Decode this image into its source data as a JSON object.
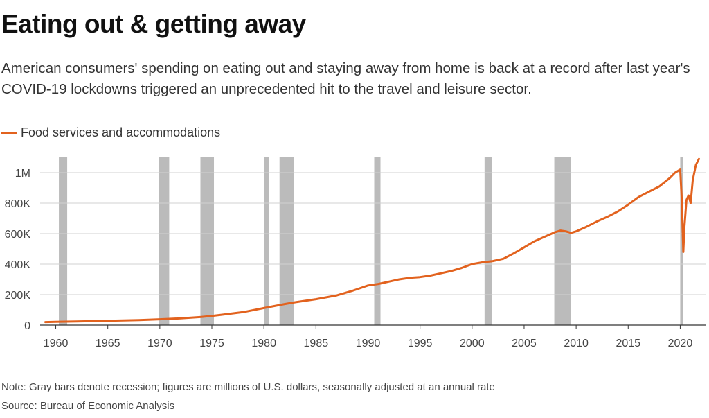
{
  "header": {
    "title": "Eating out & getting away",
    "subtitle": "American consumers' spending on eating out and staying away from home is back at a record after last year's COVID-19 lockdowns triggered an unprecedented hit to the travel and leisure sector."
  },
  "footer": {
    "note": "Note: Gray bars denote recession; figures are millions of U.S. dollars, seasonally adjusted at an annual rate",
    "source": "Source: Bureau of Economic Analysis"
  },
  "colors": {
    "line": "#e2621e",
    "recession": "#bbbbbb",
    "grid": "#d0d0d0"
  },
  "chart_data": {
    "type": "line",
    "title": "Eating out & getting away",
    "xlabel": "",
    "ylabel": "",
    "xlim": [
      1958.5,
      2022.5
    ],
    "ylim": [
      0,
      1100000
    ],
    "grid": true,
    "legend_position": "top-left",
    "x_ticks": [
      1960,
      1965,
      1970,
      1975,
      1980,
      1985,
      1990,
      1995,
      2000,
      2005,
      2010,
      2015,
      2020
    ],
    "x_tick_labels": [
      "1960",
      "1965",
      "1970",
      "1975",
      "1980",
      "1985",
      "1990",
      "1995",
      "2000",
      "2005",
      "2010",
      "2015",
      "2020"
    ],
    "y_ticks": [
      0,
      200000,
      400000,
      600000,
      800000,
      1000000
    ],
    "y_tick_labels": [
      "0",
      "200K",
      "400K",
      "600K",
      "800K",
      "1M"
    ],
    "recessions": [
      [
        1960.3,
        1961.1
      ],
      [
        1969.9,
        1970.9
      ],
      [
        1973.9,
        1975.2
      ],
      [
        1980.0,
        1980.5
      ],
      [
        1981.5,
        1982.9
      ],
      [
        1990.6,
        1991.2
      ],
      [
        2001.2,
        2001.9
      ],
      [
        2007.9,
        2009.5
      ],
      [
        2020.0,
        2020.3
      ]
    ],
    "series": [
      {
        "name": "Food services and accommodations",
        "x": [
          1959.0,
          1960.0,
          1962.0,
          1965.0,
          1968.0,
          1970.0,
          1972.0,
          1974.0,
          1975.0,
          1976.0,
          1978.0,
          1980.0,
          1981.0,
          1982.0,
          1983.0,
          1985.0,
          1987.0,
          1988.5,
          1990.0,
          1991.0,
          1992.0,
          1993.0,
          1994.0,
          1995.0,
          1996.0,
          1997.0,
          1998.0,
          1999.0,
          2000.0,
          2001.0,
          2002.0,
          2003.0,
          2004.0,
          2005.0,
          2006.0,
          2007.0,
          2008.0,
          2008.5,
          2009.0,
          2009.5,
          2010.0,
          2011.0,
          2012.0,
          2013.0,
          2014.0,
          2015.0,
          2016.0,
          2017.0,
          2018.0,
          2019.0,
          2019.5,
          2020.0,
          2020.15,
          2020.3,
          2020.4,
          2020.6,
          2020.8,
          2021.0,
          2021.2,
          2021.5,
          2021.8
        ],
        "values": [
          20000,
          22000,
          24000,
          28000,
          33000,
          38000,
          44000,
          53000,
          60000,
          68000,
          85000,
          112000,
          125000,
          138000,
          150000,
          170000,
          195000,
          225000,
          260000,
          270000,
          285000,
          300000,
          310000,
          315000,
          325000,
          340000,
          355000,
          375000,
          400000,
          412000,
          420000,
          435000,
          470000,
          510000,
          550000,
          580000,
          610000,
          620000,
          615000,
          605000,
          615000,
          645000,
          680000,
          710000,
          745000,
          790000,
          840000,
          875000,
          910000,
          965000,
          1000000,
          1020000,
          820000,
          480000,
          640000,
          820000,
          850000,
          800000,
          950000,
          1050000,
          1090000
        ]
      }
    ]
  }
}
